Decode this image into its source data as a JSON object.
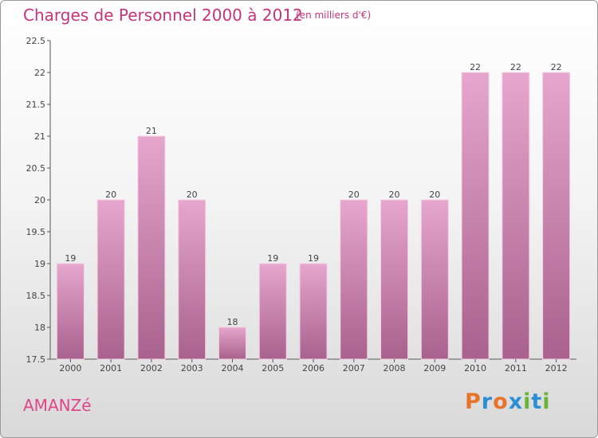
{
  "header": {
    "title": "Charges de Personnel 2000 à 2012",
    "subtitle": "(en milliers d'€)"
  },
  "footer": {
    "town": "AMANZé",
    "logo": "Proxiti"
  },
  "colors": {
    "title": "#c5347a",
    "bar_top": "#e6a6cd",
    "bar_bottom": "#a8628d",
    "logo_letters": [
      "#e8732a",
      "#2b8fd6",
      "#e8732a",
      "#2b8fd6",
      "#6ab435",
      "#2b8fd6",
      "#6ab435"
    ]
  },
  "chart_data": {
    "type": "bar",
    "categories": [
      "2000",
      "2001",
      "2002",
      "2003",
      "2004",
      "2005",
      "2006",
      "2007",
      "2008",
      "2009",
      "2010",
      "2011",
      "2012"
    ],
    "values": [
      19,
      20,
      21,
      20,
      18,
      19,
      19,
      20,
      20,
      20,
      22,
      22,
      22
    ],
    "value_labels": [
      "19",
      "20",
      "21",
      "20",
      "18",
      "19",
      "19",
      "20",
      "20",
      "20",
      "22",
      "22",
      "22"
    ],
    "ylim": [
      17.5,
      22.5
    ],
    "yticks": [
      17.5,
      18,
      18.5,
      19,
      19.5,
      20,
      20.5,
      21,
      21.5,
      22,
      22.5
    ],
    "ytick_labels": [
      "17.5",
      "18",
      "18.5",
      "19",
      "19.5",
      "20",
      "20.5",
      "21",
      "21.5",
      "22",
      "22.5"
    ],
    "grid": false,
    "xlabel": "",
    "ylabel": ""
  }
}
